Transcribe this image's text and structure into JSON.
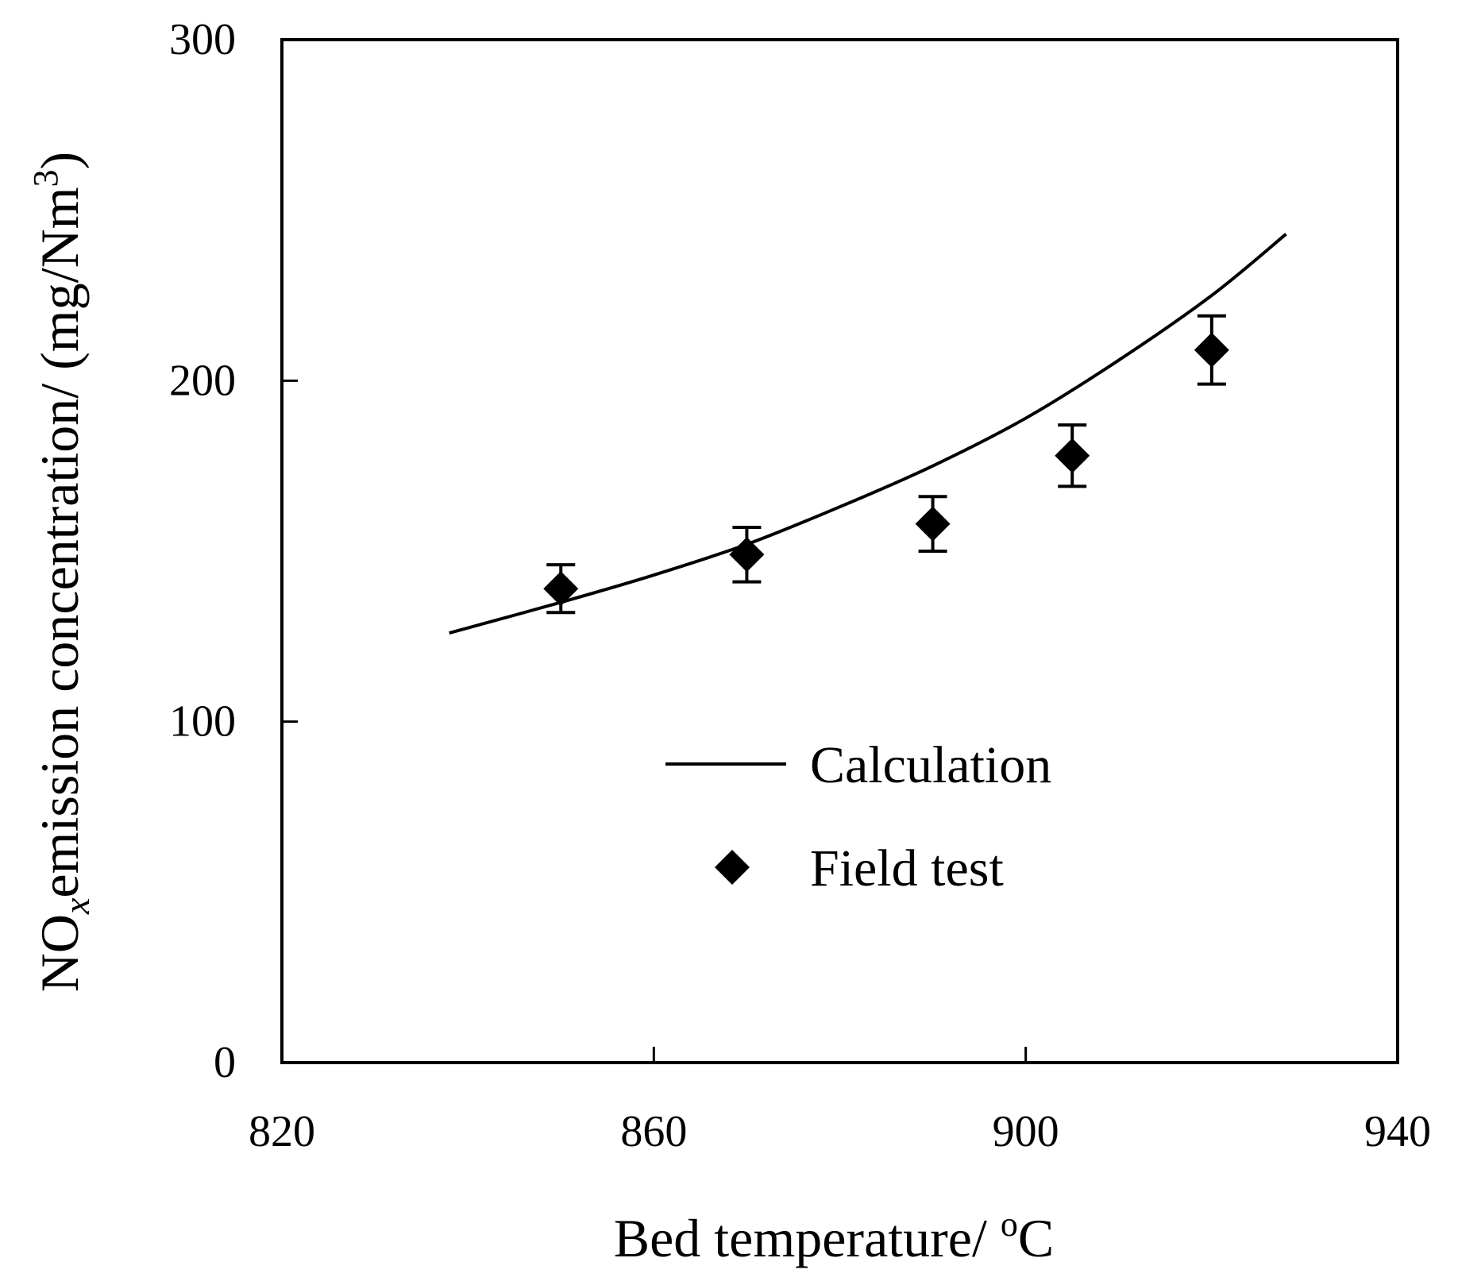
{
  "chart_data": {
    "type": "scatter",
    "title": "",
    "xlabel": "Bed temperature/ °C",
    "xlabel_parts": {
      "main": "Bed temperature/ ",
      "super": "o",
      "unit": "C"
    },
    "ylabel": "NOx emission concentration/ (mg/Nm3)",
    "ylabel_parts": {
      "pre": "NO",
      "sub": "x",
      "mid": "emission concentration/ (mg/Nm",
      "super": "3",
      "post": ")"
    },
    "xlim": [
      820,
      940
    ],
    "ylim": [
      0,
      300
    ],
    "xticks": [
      820,
      860,
      900,
      940
    ],
    "yticks": [
      0,
      100,
      200,
      300
    ],
    "grid": false,
    "legend_position": "center",
    "colors": {
      "line": "#000000",
      "marker": "#000000"
    },
    "series": [
      {
        "name": "Calculation",
        "kind": "line",
        "x": [
          838,
          850,
          860,
          870,
          880,
          890,
          900,
          910,
          920,
          928
        ],
        "y": [
          126,
          135,
          143,
          152,
          163,
          175,
          189,
          206,
          225,
          243
        ]
      },
      {
        "name": "Field test",
        "kind": "scatter",
        "marker": "diamond",
        "x": [
          850,
          870,
          890,
          905,
          920
        ],
        "y": [
          139,
          149,
          158,
          178,
          209
        ],
        "err": [
          7,
          8,
          8,
          9,
          10
        ]
      }
    ]
  }
}
